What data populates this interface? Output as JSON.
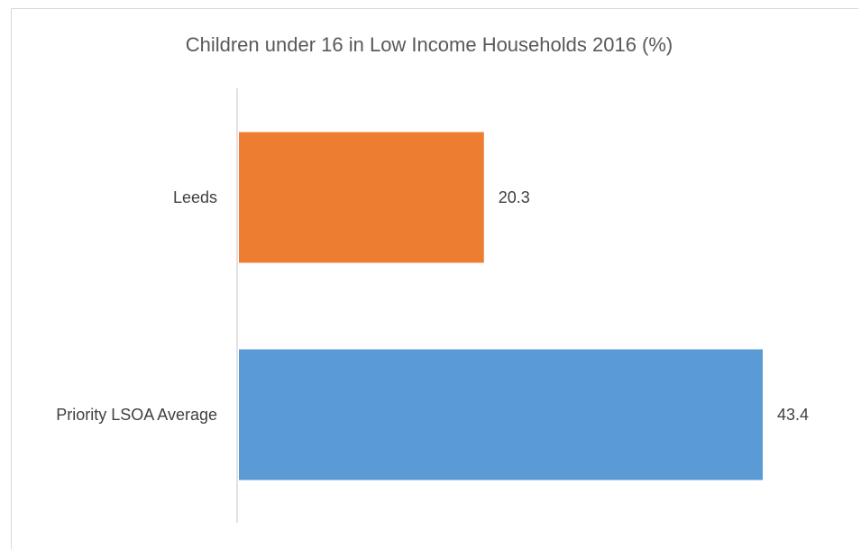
{
  "chart_data": {
    "type": "bar",
    "orientation": "horizontal",
    "title": "Children under 16 in Low Income Households 2016 (%)",
    "categories": [
      "Leeds",
      "Priority LSOA Average"
    ],
    "values": [
      20.3,
      43.4
    ],
    "data_labels": [
      "20.3",
      "43.4"
    ],
    "colors": [
      "#ED7D31",
      "#5B9BD5"
    ],
    "xlim": [
      0,
      43.4
    ],
    "grid": false,
    "legend": "none"
  }
}
